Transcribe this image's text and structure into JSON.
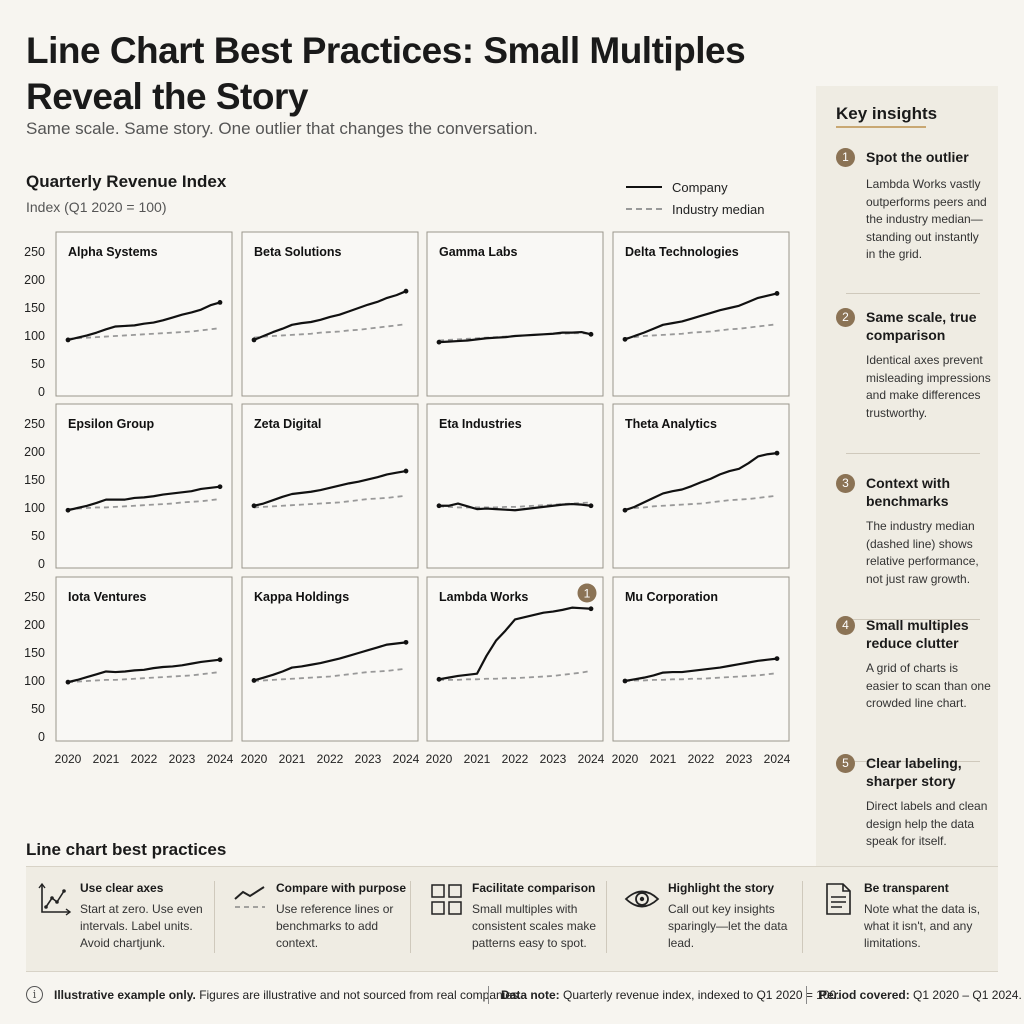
{
  "header": {
    "title": "Line Chart Best Practices: Small Multiples Reveal the Story",
    "subtitle": "Same scale. Same story. One outlier that changes the conversation."
  },
  "chart_data": {
    "type": "line",
    "title": "Quarterly Revenue Index",
    "subtitle": "Index (Q1 2020 = 100)",
    "ylim": [
      0,
      250
    ],
    "yticks": [
      0,
      50,
      100,
      150,
      200,
      250
    ],
    "xlim": [
      2020,
      2024
    ],
    "xticks": [
      "2020",
      "2021",
      "2022",
      "2023",
      "2024"
    ],
    "legend": {
      "company": "Company",
      "median": "Industry median",
      "position": "top-right"
    },
    "x": [
      2020,
      2020.25,
      2020.5,
      2020.75,
      2021,
      2021.25,
      2021.5,
      2021.75,
      2022,
      2022.25,
      2022.5,
      2022.75,
      2023,
      2023.25,
      2023.5,
      2023.75,
      2024
    ],
    "panels": [
      {
        "name": "Alpha Systems",
        "company": [
          93,
          97,
          101,
          106,
          112,
          117,
          118,
          119,
          122,
          124,
          128,
          133,
          138,
          142,
          147,
          155,
          160
        ],
        "median": [
          95,
          96,
          97,
          98,
          99,
          100,
          101,
          102,
          103,
          104,
          105,
          106,
          107,
          108,
          110,
          112,
          114
        ]
      },
      {
        "name": "Beta Solutions",
        "company": [
          93,
          100,
          107,
          113,
          120,
          123,
          125,
          129,
          134,
          138,
          144,
          150,
          156,
          161,
          168,
          173,
          180
        ],
        "median": [
          97,
          99,
          100,
          101,
          102,
          103,
          104,
          106,
          107,
          108,
          110,
          111,
          113,
          115,
          117,
          119,
          121
        ]
      },
      {
        "name": "Gamma Labs",
        "company": [
          89,
          90,
          91,
          92,
          94,
          96,
          97,
          98,
          100,
          101,
          102,
          103,
          104,
          106,
          106,
          107,
          103
        ],
        "median": [
          92,
          93,
          94,
          95,
          96,
          97,
          98,
          99,
          100,
          101,
          102,
          103,
          104,
          104,
          105,
          105,
          104
        ]
      },
      {
        "name": "Delta Technologies",
        "company": [
          94,
          100,
          106,
          113,
          120,
          123,
          126,
          131,
          136,
          141,
          146,
          150,
          154,
          161,
          168,
          172,
          176
        ],
        "median": [
          96,
          98,
          100,
          101,
          102,
          103,
          104,
          106,
          107,
          108,
          110,
          112,
          113,
          115,
          117,
          119,
          121
        ]
      },
      {
        "name": "Epsilon Group",
        "company": [
          96,
          100,
          104,
          109,
          115,
          115,
          115,
          118,
          119,
          121,
          124,
          126,
          128,
          130,
          134,
          136,
          138
        ],
        "median": [
          98,
          99,
          100,
          101,
          101,
          102,
          103,
          104,
          105,
          106,
          107,
          108,
          110,
          111,
          112,
          114,
          116
        ]
      },
      {
        "name": "Zeta Digital",
        "company": [
          104,
          108,
          114,
          120,
          125,
          127,
          129,
          132,
          136,
          140,
          144,
          147,
          151,
          155,
          160,
          163,
          166
        ],
        "median": [
          101,
          102,
          103,
          104,
          105,
          106,
          107,
          108,
          109,
          110,
          112,
          114,
          116,
          117,
          118,
          120,
          122
        ]
      },
      {
        "name": "Eta Industries",
        "company": [
          104,
          104,
          108,
          103,
          98,
          99,
          98,
          97,
          96,
          98,
          100,
          102,
          104,
          106,
          107,
          106,
          104
        ],
        "median": [
          103,
          102,
          101,
          101,
          101,
          101,
          101,
          102,
          102,
          103,
          104,
          105,
          106,
          107,
          108,
          109,
          110
        ]
      },
      {
        "name": "Theta Analytics",
        "company": [
          96,
          102,
          110,
          118,
          126,
          130,
          133,
          139,
          146,
          152,
          160,
          166,
          170,
          180,
          192,
          196,
          198
        ],
        "median": [
          98,
          100,
          101,
          103,
          104,
          105,
          106,
          107,
          108,
          110,
          112,
          114,
          115,
          116,
          118,
          120,
          122
        ]
      },
      {
        "name": "Iota Ventures",
        "company": [
          98,
          102,
          107,
          112,
          117,
          116,
          117,
          119,
          120,
          123,
          125,
          126,
          128,
          131,
          134,
          136,
          138
        ],
        "median": [
          98,
          99,
          100,
          101,
          102,
          102,
          103,
          104,
          105,
          106,
          107,
          108,
          109,
          110,
          112,
          114,
          116
        ]
      },
      {
        "name": "Kappa Holdings",
        "company": [
          101,
          106,
          111,
          117,
          124,
          126,
          129,
          132,
          136,
          140,
          145,
          150,
          155,
          160,
          165,
          167,
          169
        ],
        "median": [
          100,
          101,
          102,
          103,
          104,
          105,
          106,
          107,
          108,
          110,
          112,
          114,
          116,
          117,
          118,
          120,
          122
        ]
      },
      {
        "name": "Lambda Works",
        "company": [
          103,
          106,
          109,
          111,
          113,
          145,
          172,
          190,
          210,
          214,
          218,
          222,
          224,
          227,
          231,
          230,
          229
        ],
        "median": [
          102,
          102,
          102,
          103,
          103,
          104,
          104,
          105,
          105,
          106,
          107,
          108,
          109,
          111,
          113,
          115,
          118
        ],
        "callout": "1"
      },
      {
        "name": "Mu Corporation",
        "company": [
          100,
          103,
          106,
          110,
          115,
          116,
          116,
          118,
          120,
          122,
          124,
          127,
          130,
          133,
          136,
          138,
          140
        ],
        "median": [
          100,
          101,
          101,
          102,
          102,
          103,
          103,
          104,
          104,
          105,
          106,
          107,
          108,
          109,
          110,
          112,
          114
        ]
      }
    ]
  },
  "sidebar": {
    "title": "Key insights",
    "insights": [
      {
        "num": "1",
        "title": "Spot the outlier",
        "body": "Lambda Works vastly outperforms peers and the industry median—standing out instantly in the grid."
      },
      {
        "num": "2",
        "title": "Same scale, true comparison",
        "body": "Identical axes prevent misleading impressions and make differences trustworthy."
      },
      {
        "num": "3",
        "title": "Context with benchmarks",
        "body": "The industry median (dashed line) shows relative performance, not just raw growth."
      },
      {
        "num": "4",
        "title": "Small multiples reduce clutter",
        "body": "A grid of charts is easier to scan than one crowded line chart."
      },
      {
        "num": "5",
        "title": "Clear labeling, sharper story",
        "body": "Direct labels and clean design help the data speak for itself."
      }
    ]
  },
  "best_practices": {
    "title": "Line chart best practices",
    "items": [
      {
        "icon": "axes-chart-icon",
        "head": "Use clear axes",
        "body": "Start at zero. Use even intervals. Label units. Avoid chartjunk."
      },
      {
        "icon": "compare-lines-icon",
        "head": "Compare with purpose",
        "body": "Use reference lines or benchmarks to add context."
      },
      {
        "icon": "grid-squares-icon",
        "head": "Facilitate comparison",
        "body": "Small multiples with consistent scales make patterns easy to spot."
      },
      {
        "icon": "eye-icon",
        "head": "Highlight the story",
        "body": "Call out key insights sparingly—let the data lead."
      },
      {
        "icon": "document-icon",
        "head": "Be transparent",
        "body": "Note what the data is, what it isn't, and any limitations."
      }
    ]
  },
  "footer": {
    "disclaimer_bold": "Illustrative example only.",
    "disclaimer": "Figures are illustrative and not sourced from real companies.",
    "note_bold": "Data note:",
    "note": "Quarterly revenue index, indexed to Q1 2020 = 100.",
    "period_bold": "Period covered:",
    "period": "Q1 2020 – Q1 2024."
  },
  "colors": {
    "accent": "#8b7355",
    "underline": "#c9a873",
    "company_line": "#111111",
    "median_line": "#999999",
    "panel_bg": "#f9f8f5",
    "sidebar_bg": "#efece3"
  }
}
